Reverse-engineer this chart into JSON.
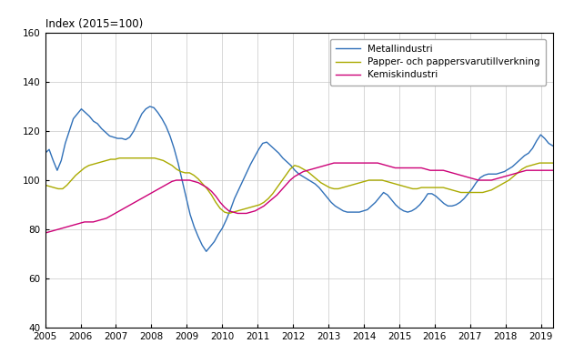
{
  "title": "Index (2015=100)",
  "xlim": [
    2005.0,
    2019.33
  ],
  "ylim": [
    40,
    160
  ],
  "yticks": [
    40,
    60,
    80,
    100,
    120,
    140,
    160
  ],
  "xticks": [
    2005,
    2006,
    2007,
    2008,
    2009,
    2010,
    2011,
    2012,
    2013,
    2014,
    2015,
    2016,
    2017,
    2018,
    2019
  ],
  "legend_labels": [
    "Metallindustri",
    "Papper- och pappersvarutillverkning",
    "Kemiskindustri"
  ],
  "colors": [
    "#3070B8",
    "#AAAA00",
    "#CC0077"
  ],
  "line_width": 1.0,
  "metallindustri": [
    111.0,
    112.5,
    108.0,
    104.0,
    108.0,
    115.0,
    120.0,
    125.0,
    127.0,
    129.0,
    127.5,
    126.0,
    124.0,
    123.0,
    121.0,
    119.5,
    118.0,
    117.5,
    117.0,
    117.0,
    116.5,
    117.5,
    120.0,
    123.5,
    127.0,
    129.0,
    130.0,
    129.5,
    127.5,
    125.0,
    122.0,
    118.0,
    113.0,
    107.0,
    100.0,
    93.0,
    86.0,
    81.0,
    77.0,
    73.5,
    71.0,
    73.0,
    75.0,
    78.0,
    80.5,
    84.0,
    88.0,
    92.5,
    96.0,
    99.5,
    103.0,
    106.5,
    109.5,
    112.5,
    115.0,
    115.5,
    114.0,
    112.5,
    111.0,
    109.0,
    107.5,
    106.0,
    104.0,
    102.5,
    101.5,
    100.5,
    99.5,
    98.5,
    97.0,
    95.0,
    93.0,
    91.0,
    89.5,
    88.5,
    87.5,
    87.0,
    87.0,
    87.0,
    87.0,
    87.5,
    88.0,
    89.5,
    91.0,
    93.0,
    95.0,
    94.0,
    92.0,
    90.0,
    88.5,
    87.5,
    87.0,
    87.5,
    88.5,
    90.0,
    92.0,
    94.5,
    94.5,
    93.5,
    92.0,
    90.5,
    89.5,
    89.5,
    90.0,
    91.0,
    92.5,
    94.5,
    96.5,
    99.0,
    101.0,
    102.0,
    102.5,
    102.5,
    102.5,
    103.0,
    103.5,
    104.5,
    105.5,
    107.0,
    108.5,
    110.0,
    111.0,
    113.0,
    116.0,
    118.5,
    117.0,
    115.0,
    114.0
  ],
  "papper": [
    98.0,
    97.5,
    97.0,
    96.5,
    96.5,
    98.0,
    100.0,
    102.0,
    103.5,
    105.0,
    106.0,
    106.5,
    107.0,
    107.5,
    108.0,
    108.5,
    108.5,
    109.0,
    109.0,
    109.0,
    109.0,
    109.0,
    109.0,
    109.0,
    109.0,
    109.0,
    108.5,
    108.0,
    107.0,
    106.0,
    104.5,
    103.5,
    103.0,
    103.0,
    102.0,
    100.5,
    98.5,
    96.5,
    94.0,
    91.0,
    88.5,
    87.0,
    86.5,
    87.0,
    87.5,
    88.0,
    88.5,
    89.0,
    89.5,
    90.0,
    91.0,
    92.5,
    94.5,
    97.0,
    99.5,
    102.0,
    104.5,
    106.0,
    105.5,
    104.5,
    103.5,
    102.0,
    100.5,
    99.0,
    98.0,
    97.0,
    96.5,
    96.5,
    97.0,
    97.5,
    98.0,
    98.5,
    99.0,
    99.5,
    100.0,
    100.0,
    100.0,
    100.0,
    99.5,
    99.0,
    98.5,
    98.0,
    97.5,
    97.0,
    96.5,
    96.5,
    97.0,
    97.0,
    97.0,
    97.0,
    97.0,
    97.0,
    96.5,
    96.0,
    95.5,
    95.0,
    95.0,
    95.0,
    95.0,
    95.0,
    95.0,
    95.5,
    96.0,
    97.0,
    98.0,
    99.0,
    100.0,
    101.5,
    103.0,
    104.5,
    105.5,
    106.0,
    106.5,
    107.0,
    107.0,
    107.0,
    107.0
  ],
  "kemisk": [
    78.5,
    79.0,
    79.5,
    80.0,
    80.5,
    81.0,
    81.5,
    82.0,
    82.5,
    83.0,
    83.0,
    83.0,
    83.5,
    84.0,
    84.5,
    85.5,
    86.5,
    87.5,
    88.5,
    89.5,
    90.5,
    91.5,
    92.5,
    93.5,
    94.5,
    95.5,
    96.5,
    97.5,
    98.5,
    99.5,
    100.0,
    100.0,
    100.0,
    100.0,
    99.5,
    99.0,
    98.0,
    97.0,
    95.5,
    93.5,
    91.0,
    89.0,
    87.5,
    87.0,
    86.5,
    86.5,
    86.5,
    87.0,
    87.5,
    88.5,
    89.5,
    91.0,
    92.5,
    94.0,
    96.0,
    98.0,
    100.0,
    101.5,
    102.5,
    103.5,
    104.0,
    104.5,
    105.0,
    105.5,
    106.0,
    106.5,
    107.0,
    107.0,
    107.0,
    107.0,
    107.0,
    107.0,
    107.0,
    107.0,
    107.0,
    107.0,
    107.0,
    106.5,
    106.0,
    105.5,
    105.0,
    105.0,
    105.0,
    105.0,
    105.0,
    105.0,
    105.0,
    104.5,
    104.0,
    104.0,
    104.0,
    104.0,
    103.5,
    103.0,
    102.5,
    102.0,
    101.5,
    101.0,
    100.5,
    100.0,
    100.0,
    100.0,
    100.0,
    100.5,
    101.0,
    101.5,
    102.0,
    102.5,
    103.0,
    103.5,
    104.0,
    104.0,
    104.0,
    104.0,
    104.0,
    104.0,
    104.0
  ]
}
